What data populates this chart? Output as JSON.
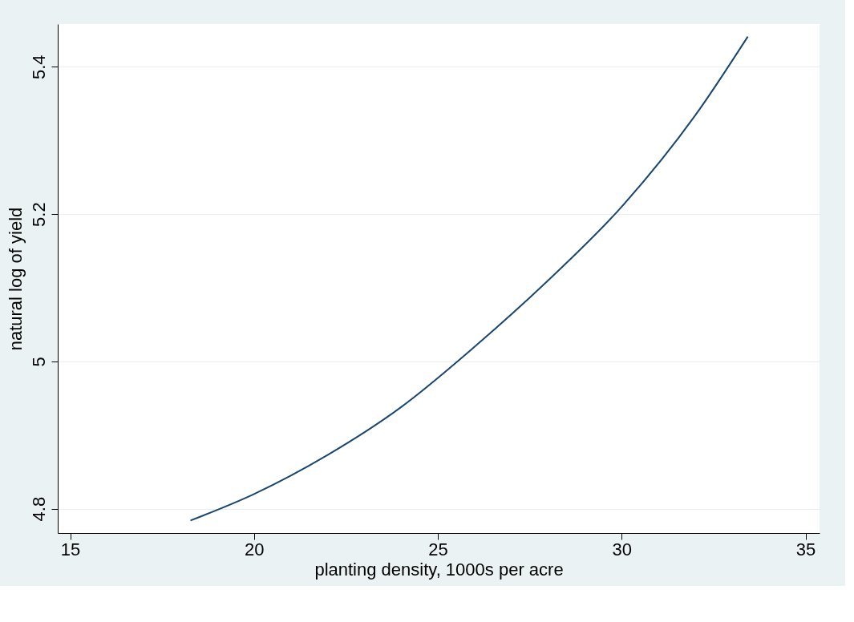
{
  "chart_data": {
    "type": "line",
    "xlabel": "planting density, 1000s per acre",
    "ylabel": "natural log of yield",
    "series": [
      {
        "color": "#1a476f",
        "x": [
          18.27,
          20,
          22,
          24,
          26,
          28,
          30,
          32,
          33.43
        ],
        "values": [
          4.784,
          4.82,
          4.873,
          4.938,
          5.02,
          5.11,
          5.21,
          5.334,
          5.441
        ]
      }
    ],
    "xlim": [
      14.66,
      35.38
    ],
    "ylim": [
      4.767,
      5.458
    ],
    "xticks": [
      15,
      20,
      25,
      30,
      35
    ],
    "yticks": [
      4.8,
      5,
      5.2,
      5.4
    ],
    "grid": "y",
    "legend": false,
    "marker": "none",
    "line_style": "solid"
  }
}
